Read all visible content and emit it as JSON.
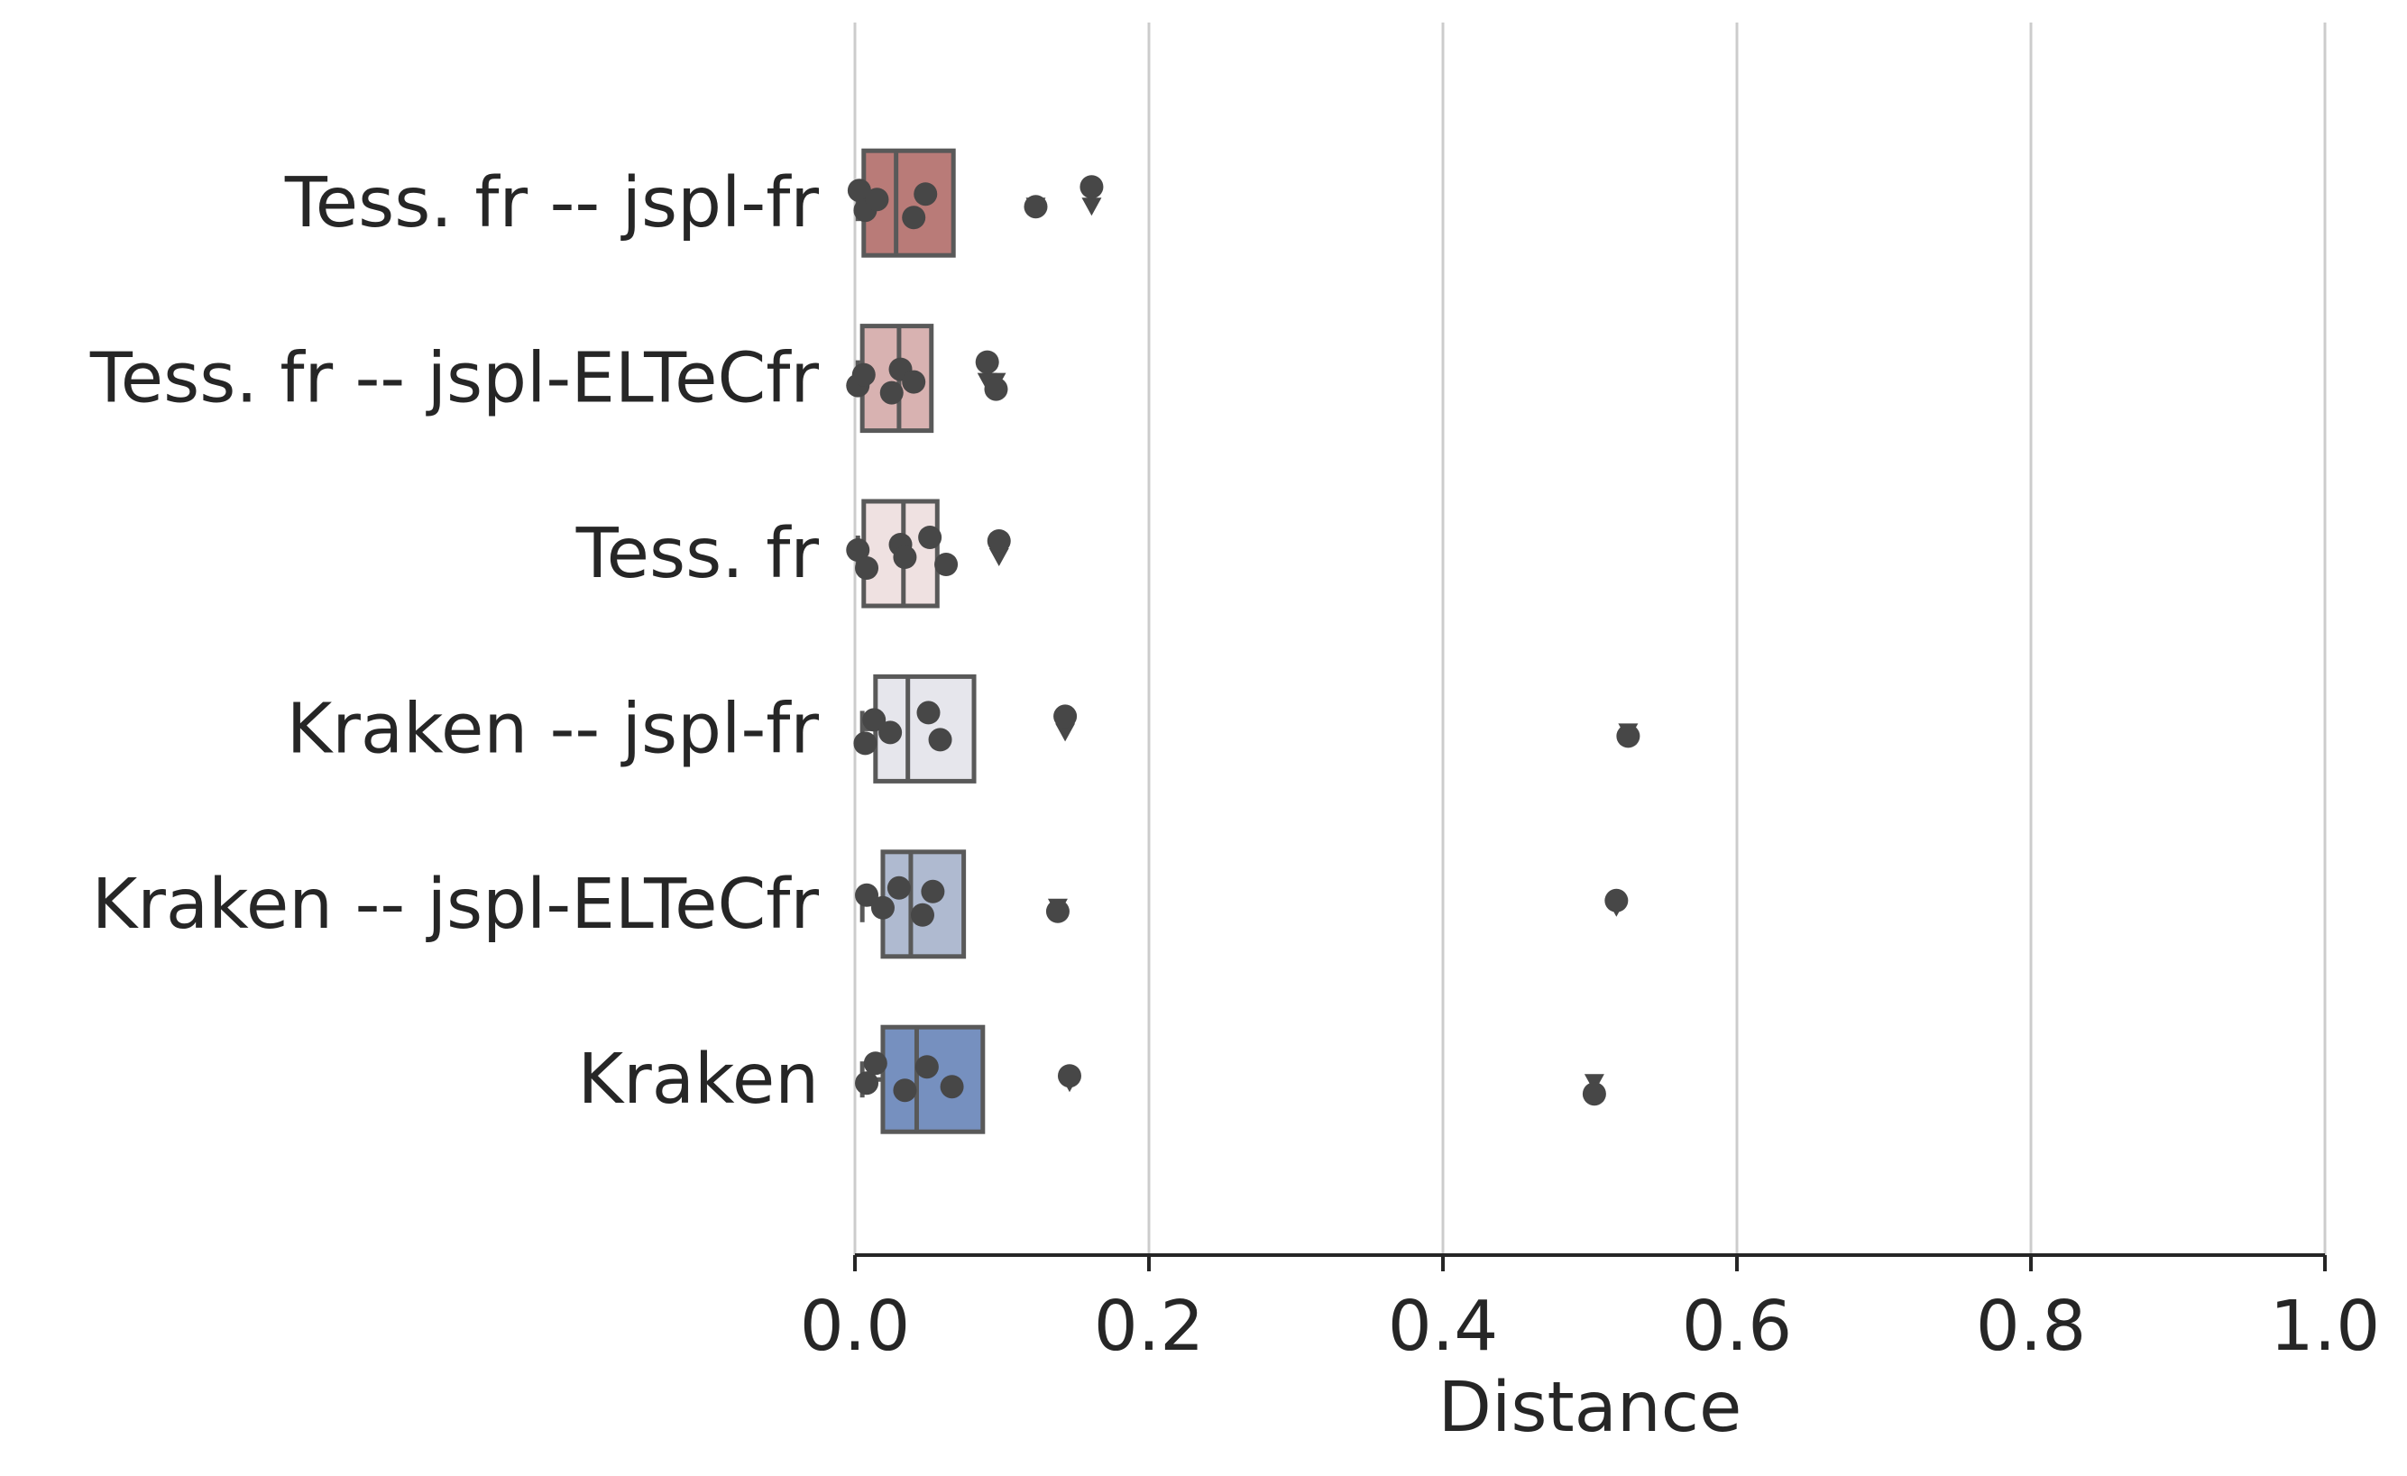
{
  "chart_data": {
    "type": "box",
    "orientation": "horizontal",
    "title": "",
    "xlabel": "Distance",
    "ylabel": "",
    "xlim": [
      0.0,
      1.0
    ],
    "xticks": [
      0.0,
      0.2,
      0.4,
      0.6,
      0.8,
      1.0
    ],
    "xtick_labels": [
      "0.0",
      "0.2",
      "0.4",
      "0.6",
      "0.8",
      "1.0"
    ],
    "grid": "vertical",
    "categories": [
      "Tess. fr -- jspl-fr",
      "Tess. fr -- jspl-ELTeCfr",
      "Tess. fr",
      "Kraken -- jspl-fr",
      "Kraken -- jspl-ELTeCfr",
      "Kraken"
    ],
    "colors": [
      "#b97b78",
      "#d8b2b1",
      "#efe1e1",
      "#e6e6ec",
      "#afbad0",
      "#7690bf"
    ],
    "boxes": [
      {
        "whislo": 0.002,
        "q1": 0.006,
        "med": 0.028,
        "q3": 0.067,
        "whishi": 0.067,
        "fliers": [
          0.123,
          0.161
        ]
      },
      {
        "whislo": 0.002,
        "q1": 0.005,
        "med": 0.03,
        "q3": 0.052,
        "whishi": 0.052,
        "fliers": [
          0.09,
          0.096
        ]
      },
      {
        "whislo": 0.002,
        "q1": 0.006,
        "med": 0.033,
        "q3": 0.056,
        "whishi": 0.056,
        "fliers": [
          0.098
        ]
      },
      {
        "whislo": 0.005,
        "q1": 0.014,
        "med": 0.036,
        "q3": 0.081,
        "whishi": 0.081,
        "fliers": [
          0.143,
          0.526
        ]
      },
      {
        "whislo": 0.005,
        "q1": 0.019,
        "med": 0.038,
        "q3": 0.074,
        "whishi": 0.074,
        "fliers": [
          0.138,
          0.518
        ]
      },
      {
        "whislo": 0.005,
        "q1": 0.019,
        "med": 0.042,
        "q3": 0.087,
        "whishi": 0.087,
        "fliers": [
          0.146,
          0.503
        ]
      }
    ],
    "points": [
      [
        0.003,
        0.007,
        0.015,
        0.04,
        0.048,
        0.123,
        0.161
      ],
      [
        0.002,
        0.006,
        0.025,
        0.031,
        0.04,
        0.09,
        0.096
      ],
      [
        0.002,
        0.008,
        0.031,
        0.034,
        0.051,
        0.062,
        0.098
      ],
      [
        0.007,
        0.013,
        0.024,
        0.05,
        0.058,
        0.143,
        0.526
      ],
      [
        0.008,
        0.019,
        0.03,
        0.046,
        0.053,
        0.138,
        0.518
      ],
      [
        0.008,
        0.014,
        0.034,
        0.049,
        0.066,
        0.146,
        0.503
      ]
    ]
  }
}
